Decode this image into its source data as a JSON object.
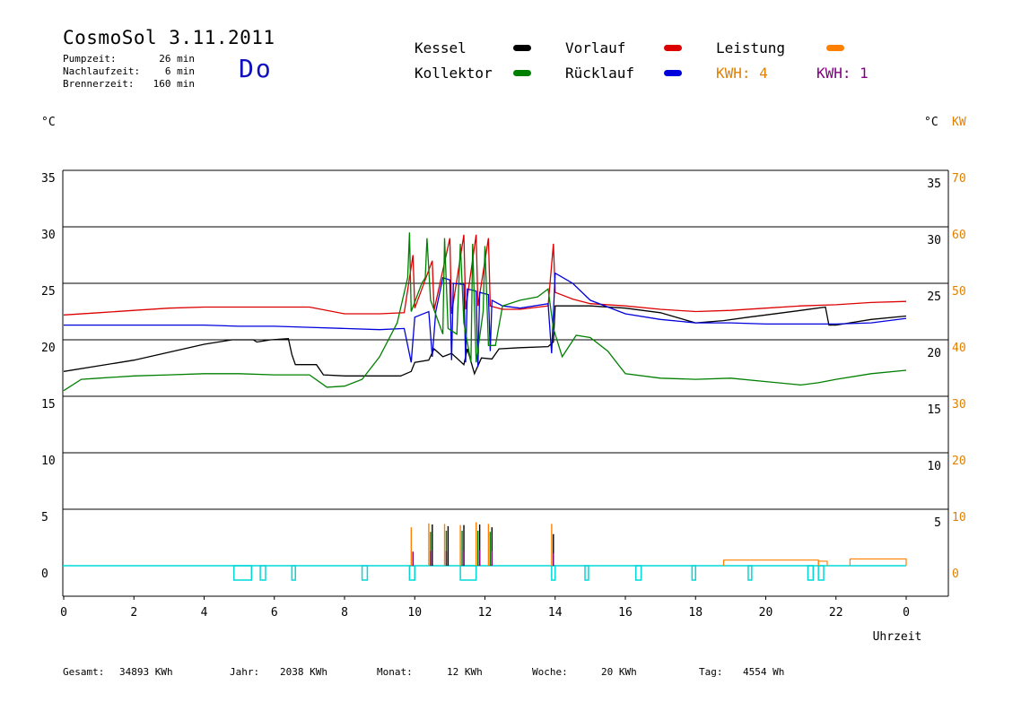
{
  "header": {
    "title": "CosmoSol 3.11.2011",
    "day": "Do",
    "info": [
      {
        "label": "Pumpzeit:",
        "value": "26 min"
      },
      {
        "label": "Nachlaufzeit:",
        "value": "6 min"
      },
      {
        "label": "Brennerzeit:",
        "value": "160 min"
      }
    ]
  },
  "legend": {
    "kessel": "Kessel",
    "kollektor": "Kollektor",
    "vorlauf": "Vorlauf",
    "ruecklauf": "Rücklauf",
    "leistung": "Leistung",
    "kwh1": "KWH: 4",
    "kwh2": "KWH: 1"
  },
  "units": {
    "left": "°C",
    "right_c": "°C",
    "right_kw": "KW"
  },
  "footer": {
    "gesamt_label": "Gesamt:",
    "gesamt_value": "34893 KWh",
    "jahr_label": "Jahr:",
    "jahr_value": "2038 KWh",
    "monat_label": "Monat:",
    "monat_value": "12 KWh",
    "woche_label": "Woche:",
    "woche_value": "20 KWh",
    "tag_label": "Tag:",
    "tag_value": "4554 Wh"
  },
  "chart_data": {
    "type": "line",
    "xlabel": "Uhrzeit",
    "x_ticks": [
      "0",
      "2",
      "4",
      "6",
      "8",
      "10",
      "12",
      "14",
      "16",
      "18",
      "20",
      "22",
      "0"
    ],
    "y_ticks_left": [
      "35",
      "30",
      "25",
      "20",
      "15",
      "10",
      "5",
      "0"
    ],
    "y_ticks_right_c": [
      "35",
      "30",
      "25",
      "20",
      "15",
      "10",
      "5"
    ],
    "y_ticks_right_kw": [
      "70",
      "60",
      "50",
      "40",
      "30",
      "20",
      "10",
      "0"
    ],
    "xlim": [
      0,
      24
    ],
    "ylim": [
      0,
      35
    ],
    "colors": {
      "kessel": "#000000",
      "kollektor": "#008000",
      "vorlauf": "#dd0000",
      "ruecklauf": "#0000dd",
      "leistung": "#ff8000",
      "kwh1": "#e08000",
      "kwh2": "#800080",
      "pump": "#00d8d8"
    },
    "series": [
      {
        "name": "Kessel",
        "points": [
          [
            0,
            17.2
          ],
          [
            1,
            17.7
          ],
          [
            2,
            18.2
          ],
          [
            3,
            18.9
          ],
          [
            4,
            19.6
          ],
          [
            4.8,
            20.0
          ],
          [
            5.4,
            20.0
          ],
          [
            5.5,
            19.8
          ],
          [
            5.9,
            20.0
          ],
          [
            6.4,
            20.1
          ],
          [
            6.5,
            18.7
          ],
          [
            6.6,
            17.8
          ],
          [
            7.2,
            17.8
          ],
          [
            7.4,
            16.9
          ],
          [
            8,
            16.8
          ],
          [
            9,
            16.8
          ],
          [
            9.6,
            16.8
          ],
          [
            9.9,
            17.2
          ],
          [
            10.0,
            18.0
          ],
          [
            10.4,
            18.2
          ],
          [
            10.55,
            19.2
          ],
          [
            10.8,
            18.5
          ],
          [
            11.05,
            18.8
          ],
          [
            11.4,
            17.8
          ],
          [
            11.5,
            19.2
          ],
          [
            11.7,
            17.0
          ],
          [
            11.9,
            18.4
          ],
          [
            12.2,
            18.3
          ],
          [
            12.4,
            19.2
          ],
          [
            13,
            19.3
          ],
          [
            13.8,
            19.4
          ],
          [
            13.95,
            19.8
          ],
          [
            14,
            23.0
          ],
          [
            15,
            23.0
          ],
          [
            16,
            22.8
          ],
          [
            17,
            22.4
          ],
          [
            18,
            21.5
          ],
          [
            18.8,
            21.7
          ],
          [
            19.5,
            22.0
          ],
          [
            20,
            22.2
          ],
          [
            21,
            22.6
          ],
          [
            21.7,
            22.9
          ],
          [
            21.8,
            21.3
          ],
          [
            22,
            21.3
          ],
          [
            23,
            21.8
          ],
          [
            24,
            22.1
          ]
        ]
      },
      {
        "name": "Vorlauf",
        "points": [
          [
            0,
            22.2
          ],
          [
            1,
            22.4
          ],
          [
            2,
            22.6
          ],
          [
            3,
            22.8
          ],
          [
            4,
            22.9
          ],
          [
            5,
            22.9
          ],
          [
            6,
            22.9
          ],
          [
            7,
            22.9
          ],
          [
            8,
            22.3
          ],
          [
            9,
            22.3
          ],
          [
            9.7,
            22.4
          ],
          [
            9.95,
            27.5
          ],
          [
            10.0,
            22.8
          ],
          [
            10.5,
            27.0
          ],
          [
            10.55,
            22.6
          ],
          [
            11.0,
            29.0
          ],
          [
            11.05,
            22.3
          ],
          [
            11.4,
            29.3
          ],
          [
            11.45,
            22.7
          ],
          [
            11.75,
            29.3
          ],
          [
            11.8,
            23.0
          ],
          [
            12.1,
            29.0
          ],
          [
            12.15,
            23.0
          ],
          [
            12.5,
            22.7
          ],
          [
            13,
            22.7
          ],
          [
            13.8,
            23.0
          ],
          [
            13.95,
            28.5
          ],
          [
            14,
            24.2
          ],
          [
            14.5,
            23.6
          ],
          [
            15,
            23.2
          ],
          [
            16,
            23.0
          ],
          [
            17,
            22.7
          ],
          [
            18,
            22.5
          ],
          [
            19,
            22.6
          ],
          [
            20,
            22.8
          ],
          [
            21,
            23.0
          ],
          [
            22,
            23.1
          ],
          [
            23,
            23.3
          ],
          [
            24,
            23.4
          ]
        ]
      },
      {
        "name": "Rücklauf",
        "points": [
          [
            0,
            21.3
          ],
          [
            1,
            21.3
          ],
          [
            2,
            21.3
          ],
          [
            3,
            21.3
          ],
          [
            4,
            21.3
          ],
          [
            5,
            21.2
          ],
          [
            6,
            21.2
          ],
          [
            7,
            21.1
          ],
          [
            8,
            21.0
          ],
          [
            9,
            20.9
          ],
          [
            9.7,
            21.0
          ],
          [
            9.9,
            18.0
          ],
          [
            10.0,
            22.0
          ],
          [
            10.4,
            22.5
          ],
          [
            10.5,
            18.5
          ],
          [
            10.6,
            22.5
          ],
          [
            10.8,
            25.5
          ],
          [
            11,
            25.3
          ],
          [
            11.05,
            18.2
          ],
          [
            11.1,
            25.0
          ],
          [
            11.4,
            24.9
          ],
          [
            11.45,
            18.0
          ],
          [
            11.5,
            24.5
          ],
          [
            11.75,
            24.3
          ],
          [
            11.8,
            17.6
          ],
          [
            11.85,
            24.2
          ],
          [
            12.1,
            24.0
          ],
          [
            12.15,
            19.0
          ],
          [
            12.2,
            23.5
          ],
          [
            12.5,
            23.0
          ],
          [
            13,
            22.8
          ],
          [
            13.8,
            23.2
          ],
          [
            13.9,
            18.8
          ],
          [
            14,
            25.9
          ],
          [
            14.5,
            25.0
          ],
          [
            15,
            23.5
          ],
          [
            16,
            22.3
          ],
          [
            17,
            21.8
          ],
          [
            18,
            21.5
          ],
          [
            19,
            21.5
          ],
          [
            20,
            21.4
          ],
          [
            21,
            21.4
          ],
          [
            22,
            21.4
          ],
          [
            23,
            21.5
          ],
          [
            24,
            21.9
          ]
        ]
      },
      {
        "name": "Kollektor",
        "points": [
          [
            0,
            15.5
          ],
          [
            0.5,
            16.5
          ],
          [
            1,
            16.6
          ],
          [
            2,
            16.8
          ],
          [
            3,
            16.9
          ],
          [
            4,
            17.0
          ],
          [
            5,
            17.0
          ],
          [
            6,
            16.9
          ],
          [
            7,
            16.9
          ],
          [
            7.5,
            15.8
          ],
          [
            8,
            15.9
          ],
          [
            8.5,
            16.5
          ],
          [
            9,
            18.5
          ],
          [
            9.5,
            21.5
          ],
          [
            9.8,
            25.5
          ],
          [
            9.85,
            29.5
          ],
          [
            9.9,
            22.5
          ],
          [
            10.2,
            25.0
          ],
          [
            10.3,
            25.5
          ],
          [
            10.35,
            29.0
          ],
          [
            10.45,
            23.5
          ],
          [
            10.8,
            20.5
          ],
          [
            10.85,
            29.0
          ],
          [
            10.95,
            21.0
          ],
          [
            11.2,
            20.5
          ],
          [
            11.3,
            28.5
          ],
          [
            11.4,
            21.5
          ],
          [
            11.6,
            18.0
          ],
          [
            11.65,
            28.5
          ],
          [
            11.75,
            18.0
          ],
          [
            11.95,
            22.5
          ],
          [
            12.0,
            28.3
          ],
          [
            12.1,
            19.5
          ],
          [
            12.3,
            19.5
          ],
          [
            12.5,
            23.0
          ],
          [
            13,
            23.5
          ],
          [
            13.5,
            23.8
          ],
          [
            13.8,
            24.5
          ],
          [
            13.95,
            21.0
          ],
          [
            14.2,
            18.5
          ],
          [
            14.6,
            20.4
          ],
          [
            15,
            20.2
          ],
          [
            15.5,
            19.0
          ],
          [
            16,
            17.0
          ],
          [
            17,
            16.6
          ],
          [
            18,
            16.5
          ],
          [
            19,
            16.6
          ],
          [
            20,
            16.3
          ],
          [
            21,
            16.0
          ],
          [
            21.5,
            16.2
          ],
          [
            22,
            16.5
          ],
          [
            23,
            17.0
          ],
          [
            24,
            17.3
          ]
        ]
      }
    ],
    "spikes": [
      {
        "name": "Leistung",
        "x": [
          9.9,
          10.4,
          10.85,
          11.3,
          11.75,
          12.1,
          13.9
        ],
        "heights": [
          6.8,
          7.5,
          7.4,
          7.2,
          7.7,
          7.4,
          7.4
        ]
      },
      {
        "name": "Kessel",
        "x": [
          10.5,
          10.95,
          11.4,
          11.85,
          12.2,
          13.95
        ],
        "heights": [
          7.3,
          7.0,
          7.2,
          7.3,
          6.8,
          5.6
        ]
      },
      {
        "name": "Kollektor",
        "x": [
          10.45,
          10.9,
          11.35,
          11.8,
          12.15
        ],
        "heights": [
          6.0,
          6.2,
          6.2,
          6.2,
          6.0
        ]
      },
      {
        "name": "KWH",
        "x": [
          9.95,
          10.45,
          10.9,
          11.4,
          11.85,
          12.2,
          13.95
        ],
        "heights": [
          2.5,
          2.6,
          2.6,
          2.6,
          2.8,
          2.6,
          2.2
        ]
      }
    ],
    "pump_on_intervals": [
      [
        4.85,
        5.35
      ],
      [
        5.6,
        5.75
      ],
      [
        6.5,
        6.6
      ],
      [
        8.5,
        8.65
      ],
      [
        9.85,
        10.0
      ],
      [
        11.3,
        11.75
      ],
      [
        13.9,
        14.0
      ],
      [
        14.85,
        14.95
      ],
      [
        16.3,
        16.45
      ],
      [
        17.9,
        18.0
      ],
      [
        19.5,
        19.6
      ],
      [
        21.2,
        21.35
      ],
      [
        21.5,
        21.65
      ]
    ],
    "leistung_level": [
      [
        18.8,
        21.5,
        1.0
      ],
      [
        21.5,
        21.75,
        0.8
      ],
      [
        22.4,
        24,
        1.2
      ]
    ]
  }
}
